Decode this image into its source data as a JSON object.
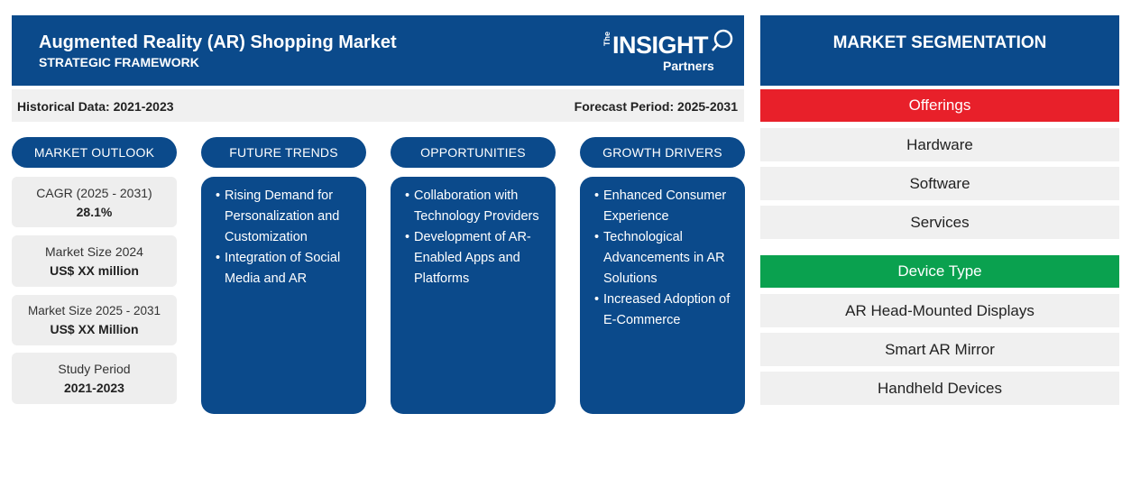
{
  "header": {
    "title": "Augmented Reality (AR) Shopping Market",
    "subtitle": "STRATEGIC FRAMEWORK"
  },
  "logo": {
    "the": "The",
    "insight": "INSIGHT",
    "partners": "Partners"
  },
  "period_bar": {
    "historical": "Historical Data: 2021-2023",
    "forecast": "Forecast Period: 2025-2031"
  },
  "market_outlook": {
    "header": "MARKET OUTLOOK",
    "items": [
      {
        "label": "CAGR (2025 - 2031)",
        "value": "28.1%"
      },
      {
        "label": "Market Size 2024",
        "value": "US$ XX million"
      },
      {
        "label": "Market Size 2025 - 2031",
        "value": "US$ XX Million"
      },
      {
        "label": "Study Period",
        "value": "2021-2023"
      }
    ]
  },
  "future_trends": {
    "header": "FUTURE TRENDS",
    "items": [
      "Rising Demand for Personalization and Customization",
      "Integration of Social Media and AR"
    ]
  },
  "opportunities": {
    "header": "OPPORTUNITIES",
    "items": [
      "Collaboration with Technology Providers",
      "Development of AR-Enabled Apps and Platforms"
    ]
  },
  "growth_drivers": {
    "header": "GROWTH DRIVERS",
    "items": [
      "Enhanced Consumer Experience",
      "Technological Advancements in AR Solutions",
      "Increased Adoption of E-Commerce"
    ]
  },
  "segmentation": {
    "header": "MARKET SEGMENTATION",
    "categories": [
      {
        "name": "Offerings",
        "color": "#e8202a",
        "items": [
          "Hardware",
          "Software",
          "Services"
        ]
      },
      {
        "name": "Device Type",
        "color": "#0aa14f",
        "items": [
          "AR Head-Mounted Displays",
          "Smart AR Mirror",
          "Handheld Devices"
        ]
      }
    ]
  },
  "colors": {
    "primary_blue": "#0b4a8b",
    "offerings_red": "#e8202a",
    "device_green": "#0aa14f",
    "light_gray": "#f0f0f0"
  }
}
